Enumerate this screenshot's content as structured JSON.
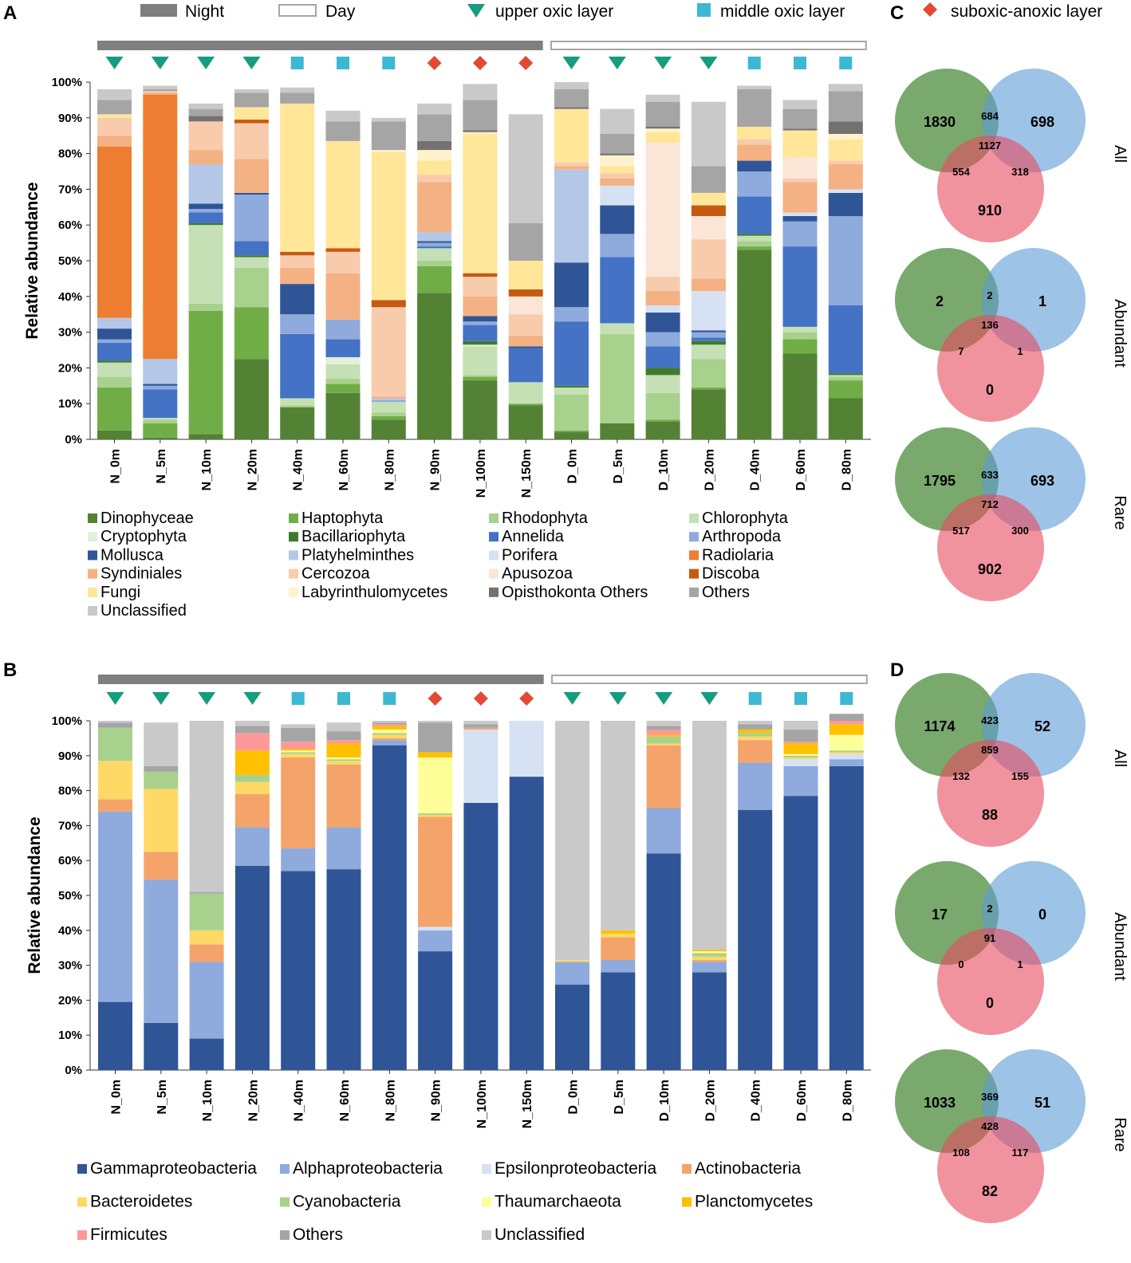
{
  "panel_labels": {
    "a": "A",
    "b": "B",
    "c": "C",
    "d": "D"
  },
  "header_legend": {
    "night": "Night",
    "day": "Day",
    "upper": "upper oxic layer",
    "middle": "middle oxic layer",
    "suboxic": "suboxic-anoxic layer"
  },
  "colors": {
    "night_bar": "#7f7f7f",
    "day_bar_border": "#a6a6a6",
    "upper": "#169c7f",
    "middle": "#3cb8d3",
    "suboxic": "#e24a33",
    "venn_green": "#4e8c3c",
    "venn_blue": "#5b9bd5",
    "venn_red": "#e84a5f"
  },
  "samples": [
    "N_0m",
    "N_5m",
    "N_10m",
    "N_20m",
    "N_40m",
    "N_60m",
    "N_80m",
    "N_90m",
    "N_100m",
    "N_150m",
    "D_0m",
    "D_5m",
    "D_10m",
    "D_20m",
    "D_40m",
    "D_60m",
    "D_80m"
  ],
  "layers": [
    "upper",
    "upper",
    "upper",
    "upper",
    "middle",
    "middle",
    "middle",
    "suboxic",
    "suboxic",
    "suboxic",
    "upper",
    "upper",
    "upper",
    "upper",
    "middle",
    "middle",
    "middle"
  ],
  "venn_set_labels": [
    "All",
    "Abundant",
    "Rare"
  ],
  "chart_data": [
    {
      "id": "A",
      "type": "bar",
      "stacked": true,
      "ylabel": "Relative abundance",
      "ylim": [
        0,
        100
      ],
      "yticks": [
        "0%",
        "10%",
        "20%",
        "30%",
        "40%",
        "50%",
        "60%",
        "70%",
        "80%",
        "90%",
        "100%"
      ],
      "categories": [
        "N_0m",
        "N_5m",
        "N_10m",
        "N_20m",
        "N_40m",
        "N_60m",
        "N_80m",
        "N_90m",
        "N_100m",
        "N_150m",
        "D_0m",
        "D_5m",
        "D_10m",
        "D_20m",
        "D_40m",
        "D_60m",
        "D_80m"
      ],
      "series": [
        {
          "name": "Dinophyceae",
          "color": "#548235",
          "values": [
            2.5,
            0.5,
            1.5,
            22.5,
            9,
            13,
            5.5,
            41,
            16.5,
            9.5,
            2,
            4.5,
            5,
            14,
            53,
            24,
            11.5
          ]
        },
        {
          "name": "Haptophyta",
          "color": "#70ad47",
          "values": [
            12,
            4,
            34.5,
            14.5,
            0,
            2.5,
            1,
            7.5,
            1,
            0.5,
            0.5,
            0,
            0.5,
            0.5,
            1,
            4,
            5
          ]
        },
        {
          "name": "Rhodophyta",
          "color": "#a9d18e",
          "values": [
            3,
            1,
            2,
            11,
            0.5,
            1.5,
            1,
            1.5,
            0.5,
            0,
            10,
            25,
            7.5,
            8,
            1.5,
            2,
            1
          ]
        },
        {
          "name": "Chlorophyta",
          "color": "#c5e0b4",
          "values": [
            4,
            0.5,
            22,
            3,
            2,
            4,
            3,
            3.5,
            8,
            6,
            2,
            3,
            5,
            4,
            1.5,
            1.5,
            0.5
          ]
        },
        {
          "name": "Cryptophyta",
          "color": "#e2f0d9",
          "values": [
            0,
            0,
            0,
            0,
            0,
            2,
            0,
            0,
            0.5,
            0,
            0,
            0,
            0,
            0,
            0,
            0,
            0
          ]
        },
        {
          "name": "Bacillariophyta",
          "color": "#3e7b2b",
          "values": [
            0.5,
            0,
            0.5,
            0.5,
            0,
            0,
            0,
            0,
            1,
            0,
            0.5,
            0,
            2,
            1,
            0.5,
            0,
            0.5
          ]
        },
        {
          "name": "Annelida",
          "color": "#4472c4",
          "values": [
            5,
            8,
            3,
            4,
            18,
            5,
            0,
            0.5,
            4.5,
            9.5,
            18,
            18.5,
            6,
            1,
            10.5,
            22.5,
            19
          ]
        },
        {
          "name": "Arthropoda",
          "color": "#8faadc",
          "values": [
            1,
            1,
            1,
            13,
            5.5,
            5.5,
            0.5,
            1,
            1,
            0,
            4,
            6.5,
            4,
            1.5,
            7,
            7,
            25
          ]
        },
        {
          "name": "Mollusca",
          "color": "#2f5597",
          "values": [
            3,
            0.5,
            1.5,
            0.5,
            8.5,
            0,
            0,
            0.5,
            1.5,
            0.5,
            12.5,
            8,
            5.5,
            0.5,
            3,
            1.5,
            6.5
          ]
        },
        {
          "name": "Platyhelminthes",
          "color": "#b4c7e7",
          "values": [
            3,
            7,
            11,
            0,
            0,
            0,
            0.5,
            2.5,
            0,
            0,
            26,
            0,
            0,
            0,
            0,
            0,
            0
          ]
        },
        {
          "name": "Porifera",
          "color": "#d6e2f3",
          "values": [
            0,
            0,
            0,
            0,
            0,
            0,
            0,
            0,
            0,
            0,
            0,
            5.5,
            2,
            11,
            0,
            1,
            1
          ]
        },
        {
          "name": "Radiolaria",
          "color": "#ed7d31",
          "values": [
            48,
            74,
            0,
            0,
            0,
            0,
            0,
            0,
            0,
            0,
            0,
            0,
            0,
            0,
            0,
            0,
            0
          ]
        },
        {
          "name": "Syndiniales",
          "color": "#f4b183",
          "values": [
            3,
            0.5,
            4,
            9.5,
            4.5,
            13,
            0.5,
            14,
            5.5,
            3,
            1,
            2,
            4,
            3.5,
            4.5,
            8.5,
            7
          ]
        },
        {
          "name": "Cercozoa",
          "color": "#f8cbad",
          "values": [
            5,
            0.5,
            8,
            10,
            3.5,
            6,
            25,
            2,
            5.5,
            6,
            1,
            1.5,
            4,
            11,
            1.5,
            1,
            1
          ]
        },
        {
          "name": "Apusozoa",
          "color": "#fbe5d6",
          "values": [
            0,
            0,
            0,
            0,
            0,
            0,
            0,
            0,
            0,
            5,
            0,
            0,
            37.5,
            6.5,
            0,
            6,
            0
          ]
        },
        {
          "name": "Discoba",
          "color": "#c55a11",
          "values": [
            0,
            0,
            0,
            1,
            1,
            1,
            2,
            0,
            1,
            2,
            0,
            0,
            0,
            3,
            0,
            0,
            0
          ]
        },
        {
          "name": "Fungi",
          "color": "#ffe699",
          "values": [
            1,
            0,
            0,
            3.5,
            41.5,
            30,
            41.5,
            4,
            39,
            8,
            15,
            2,
            3,
            3.5,
            3.5,
            7.5,
            6
          ]
        },
        {
          "name": "Labyrinthulomycetes",
          "color": "#fff2cc",
          "values": [
            0,
            0,
            0,
            0,
            0,
            0,
            0.5,
            3,
            0.5,
            0,
            0,
            3,
            1,
            0,
            0,
            0,
            1.5
          ]
        },
        {
          "name": "Opisthokonta Others",
          "color": "#767171",
          "values": [
            0,
            0,
            1.5,
            0,
            0,
            0,
            0,
            2.5,
            0.5,
            0,
            0.5,
            0.5,
            0.5,
            0,
            0,
            0.5,
            3.5
          ]
        },
        {
          "name": "Others",
          "color": "#a5a5a5",
          "values": [
            4,
            0.5,
            2,
            4,
            3,
            5.5,
            8,
            7.5,
            8.5,
            10.5,
            5,
            5.5,
            7,
            7.5,
            10.5,
            5.5,
            8.5
          ]
        },
        {
          "name": "Unclassified",
          "color": "#c9c9c9",
          "values": [
            3,
            1,
            1.5,
            1,
            1.5,
            3,
            1,
            3,
            4.5,
            30.5,
            2,
            7,
            2,
            18,
            1,
            2.5,
            2
          ]
        }
      ]
    },
    {
      "id": "B",
      "type": "bar",
      "stacked": true,
      "ylabel": "Relative abundance",
      "ylim": [
        0,
        100
      ],
      "yticks": [
        "0%",
        "10%",
        "20%",
        "30%",
        "40%",
        "50%",
        "60%",
        "70%",
        "80%",
        "90%",
        "100%"
      ],
      "categories": [
        "N_0m",
        "N_5m",
        "N_10m",
        "N_20m",
        "N_40m",
        "N_60m",
        "N_80m",
        "N_90m",
        "N_100m",
        "N_150m",
        "D_0m",
        "D_5m",
        "D_10m",
        "D_20m",
        "D_40m",
        "D_60m",
        "D_80m"
      ],
      "series": [
        {
          "name": "Gammaproteobacteria",
          "color": "#2f5597",
          "values": [
            19.5,
            13.5,
            9,
            58.5,
            57,
            57.5,
            93,
            34,
            76.5,
            84,
            24.5,
            28,
            62,
            28,
            74.5,
            78.5,
            87
          ]
        },
        {
          "name": "Alphaproteobacteria",
          "color": "#8faadc",
          "values": [
            54.5,
            41,
            22,
            11,
            6.5,
            12,
            1.5,
            6,
            0,
            0,
            6.5,
            3.5,
            13,
            3,
            13.5,
            8.5,
            2
          ]
        },
        {
          "name": "Epsilonproteobacteria",
          "color": "#d6e2f3",
          "values": [
            0,
            0,
            0,
            0,
            0,
            0,
            0,
            1,
            21,
            16,
            0,
            0,
            0,
            0,
            0,
            2,
            1.5
          ]
        },
        {
          "name": "Actinobacteria",
          "color": "#f4a46a",
          "values": [
            3.5,
            8,
            5,
            9.5,
            26,
            18,
            0.5,
            31.5,
            0.5,
            0,
            0,
            6.5,
            18,
            0.5,
            6.5,
            0,
            0
          ]
        },
        {
          "name": "Bacteroidetes",
          "color": "#ffd966",
          "values": [
            11,
            18,
            4,
            3.5,
            1,
            1,
            1,
            0.5,
            0,
            0,
            0.5,
            1,
            0.5,
            1,
            1,
            0.5,
            0.5
          ]
        },
        {
          "name": "Cyanobacteria",
          "color": "#a9d18e",
          "values": [
            9.5,
            5,
            10.5,
            2,
            0.5,
            0.5,
            0.5,
            0.5,
            0,
            0,
            0,
            0,
            2,
            1,
            1,
            0.5,
            0.5
          ]
        },
        {
          "name": "Thaumarchaeota",
          "color": "#ffff99",
          "values": [
            0,
            0,
            0,
            0,
            0.5,
            0.5,
            1,
            16,
            0,
            0,
            0,
            0,
            0,
            0.5,
            0,
            0.5,
            4.5
          ]
        },
        {
          "name": "Planctomycetes",
          "color": "#ffc000",
          "values": [
            0,
            0,
            0,
            7,
            0.5,
            4,
            1,
            1.5,
            0,
            0,
            0,
            1,
            0.5,
            0.5,
            1,
            3,
            3
          ]
        },
        {
          "name": "Firmicutes",
          "color": "#ff9999",
          "values": [
            0,
            0,
            0,
            5,
            2,
            1,
            0.5,
            0,
            0,
            0,
            0,
            0,
            1.5,
            0,
            0,
            0.5,
            1
          ]
        },
        {
          "name": "Others",
          "color": "#a5a5a5",
          "values": [
            1.5,
            1.5,
            0.5,
            2,
            4,
            2.5,
            0.5,
            8.5,
            1,
            0,
            0,
            0,
            1,
            0,
            1.5,
            3.5,
            2
          ]
        },
        {
          "name": "Unclassified",
          "color": "#c9c9c9",
          "values": [
            0.5,
            12.5,
            49,
            1.5,
            1,
            2.5,
            0.5,
            0.5,
            1,
            0,
            68.5,
            60,
            1.5,
            65.5,
            1,
            2.5,
            0
          ]
        }
      ]
    },
    {
      "id": "C",
      "type": "venn",
      "sets": [
        {
          "label": "All",
          "only_night": "1830",
          "only_day": "698",
          "only_suboxic": "910",
          "night_day": "684",
          "night_suboxic": "554",
          "day_suboxic": "318",
          "all": "1127"
        },
        {
          "label": "Abundant",
          "only_night": "2",
          "only_day": "1",
          "only_suboxic": "0",
          "night_day": "2",
          "night_suboxic": "7",
          "day_suboxic": "1",
          "all": "136"
        },
        {
          "label": "Rare",
          "only_night": "1795",
          "only_day": "693",
          "only_suboxic": "902",
          "night_day": "633",
          "night_suboxic": "517",
          "day_suboxic": "300",
          "all": "712"
        }
      ]
    },
    {
      "id": "D",
      "type": "venn",
      "sets": [
        {
          "label": "All",
          "only_night": "1174",
          "only_day": "52",
          "only_suboxic": "88",
          "night_day": "423",
          "night_suboxic": "132",
          "day_suboxic": "155",
          "all": "859"
        },
        {
          "label": "Abundant",
          "only_night": "17",
          "only_day": "0",
          "only_suboxic": "0",
          "night_day": "2",
          "night_suboxic": "0",
          "day_suboxic": "1",
          "all": "91"
        },
        {
          "label": "Rare",
          "only_night": "1033",
          "only_day": "51",
          "only_suboxic": "82",
          "night_day": "369",
          "night_suboxic": "108",
          "day_suboxic": "117",
          "all": "428"
        }
      ]
    }
  ]
}
